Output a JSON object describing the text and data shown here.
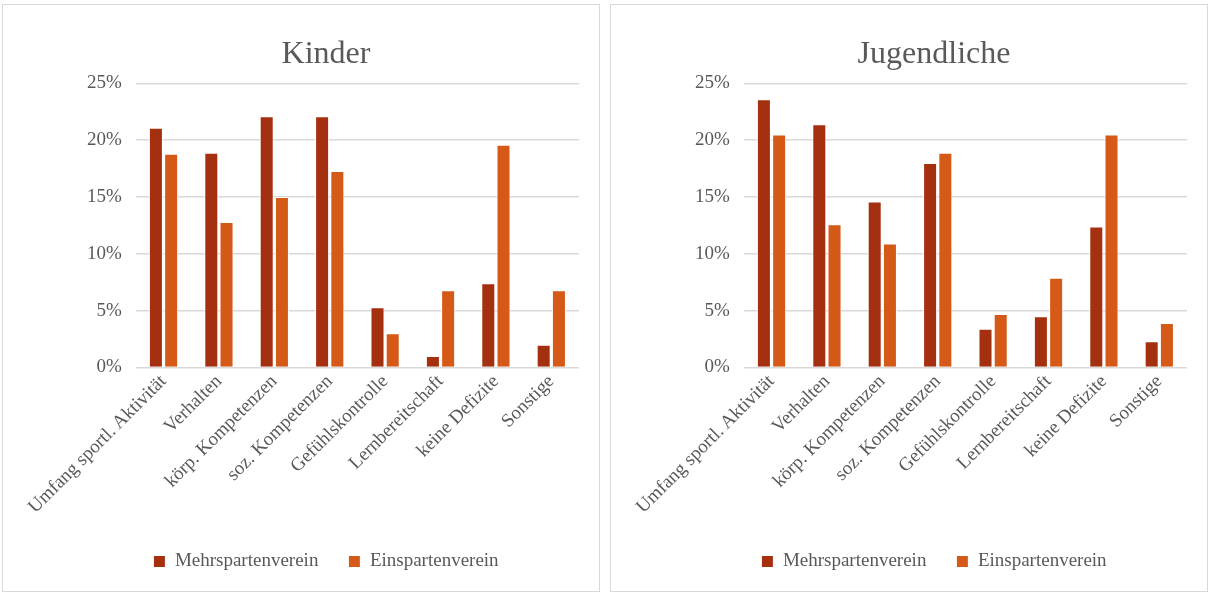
{
  "chart_data": [
    {
      "type": "bar",
      "title": "Kinder",
      "categories": [
        "Umfang sportl. Aktivität",
        "Verhalten",
        "körp. Kompetenzen",
        "soz. Kompetenzen",
        "Gefühlskontrolle",
        "Lernbereitschaft",
        "keine Defizite",
        "Sonstige"
      ],
      "series": [
        {
          "name": "Mehrspartenverein",
          "color": "#a5300f",
          "values": [
            21.1,
            18.9,
            22.1,
            22.1,
            5.3,
            1.0,
            7.4,
            2.0
          ]
        },
        {
          "name": "Einspartenverein",
          "color": "#d55a17",
          "values": [
            18.8,
            12.8,
            15.0,
            17.3,
            3.0,
            6.8,
            19.6,
            6.8
          ]
        }
      ],
      "ylim": [
        0,
        25
      ],
      "yticks": [
        {
          "value": 0,
          "label": "0%"
        },
        {
          "value": 5,
          "label": "5%"
        },
        {
          "value": 10,
          "label": "10%"
        },
        {
          "value": 15,
          "label": "15%"
        },
        {
          "value": 20,
          "label": "20%"
        },
        {
          "value": 25,
          "label": "25%"
        }
      ],
      "grid": "y",
      "legend": "bottom"
    },
    {
      "type": "bar",
      "title": "Jugendliche",
      "categories": [
        "Umfang sportl. Aktivität",
        "Verhalten",
        "körp. Kompetenzen",
        "soz. Kompetenzen",
        "Gefühlskontrolle",
        "Lernbereitschaft",
        "keine Defizite",
        "Sonstige"
      ],
      "series": [
        {
          "name": "Mehrspartenverein",
          "color": "#a5300f",
          "values": [
            23.6,
            21.4,
            14.6,
            18.0,
            3.4,
            4.5,
            12.4,
            2.3
          ]
        },
        {
          "name": "Einspartenverein",
          "color": "#d55a17",
          "values": [
            20.5,
            12.6,
            10.9,
            18.9,
            4.7,
            7.9,
            20.5,
            3.9
          ]
        }
      ],
      "ylim": [
        0,
        25
      ],
      "yticks": [
        {
          "value": 0,
          "label": "0%"
        },
        {
          "value": 5,
          "label": "5%"
        },
        {
          "value": 10,
          "label": "10%"
        },
        {
          "value": 15,
          "label": "15%"
        },
        {
          "value": 20,
          "label": "20%"
        },
        {
          "value": 25,
          "label": "25%"
        }
      ],
      "grid": "y",
      "legend": "bottom"
    }
  ]
}
